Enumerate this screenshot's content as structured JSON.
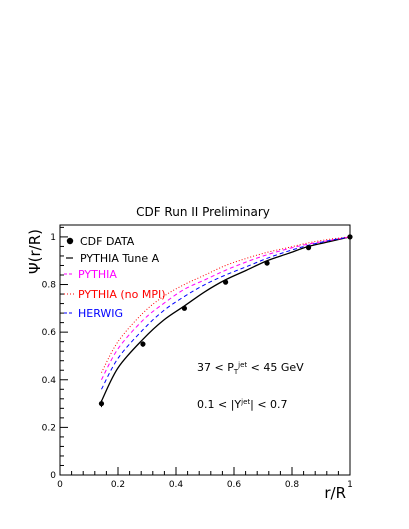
{
  "chart_data": {
    "type": "line",
    "title": "CDF Run II Preliminary",
    "xlabel": "r/R",
    "ylabel": "Ψ(r/R)",
    "xlim": [
      0,
      1
    ],
    "ylim": [
      0,
      1.05
    ],
    "xticks": [
      0,
      0.2,
      0.4,
      0.6,
      0.8,
      1
    ],
    "xtick_labels": [
      "0",
      "0.2",
      "0.4",
      "0.6",
      "0.8",
      "1"
    ],
    "yticks": [
      0,
      0.2,
      0.4,
      0.6,
      0.8,
      1
    ],
    "ytick_labels": [
      "0",
      "0.2",
      "0.4",
      "0.6",
      "0.8",
      "1"
    ],
    "grid": false,
    "legend_position": "top-left",
    "data_points": {
      "name": "CDF DATA",
      "x": [
        0.143,
        0.286,
        0.429,
        0.571,
        0.714,
        0.857,
        1.0
      ],
      "y": [
        0.3,
        0.55,
        0.7,
        0.81,
        0.89,
        0.955,
        1.0
      ],
      "yerr": [
        0.015,
        0.012,
        0.008,
        0.006,
        0.005,
        0.003,
        0.0
      ]
    },
    "series": [
      {
        "name": "PYTHIA Tune A",
        "style": "solid",
        "color": "#000000",
        "x": [
          0.143,
          0.2,
          0.286,
          0.357,
          0.429,
          0.5,
          0.571,
          0.643,
          0.714,
          0.786,
          0.857,
          0.929,
          1.0
        ],
        "y": [
          0.31,
          0.45,
          0.57,
          0.65,
          0.71,
          0.77,
          0.82,
          0.86,
          0.9,
          0.93,
          0.96,
          0.98,
          1.0
        ]
      },
      {
        "name": "PYTHIA",
        "style": "dashed",
        "color": "#ff00ff",
        "x": [
          0.143,
          0.2,
          0.286,
          0.357,
          0.429,
          0.5,
          0.571,
          0.643,
          0.714,
          0.786,
          0.857,
          0.929,
          1.0
        ],
        "y": [
          0.4,
          0.53,
          0.65,
          0.72,
          0.78,
          0.82,
          0.86,
          0.895,
          0.925,
          0.95,
          0.97,
          0.985,
          1.0
        ]
      },
      {
        "name": "PYTHIA (no MPI)",
        "style": "dotted",
        "color": "#ff0000",
        "x": [
          0.143,
          0.2,
          0.286,
          0.357,
          0.429,
          0.5,
          0.571,
          0.643,
          0.714,
          0.786,
          0.857,
          0.929,
          1.0
        ],
        "y": [
          0.43,
          0.56,
          0.68,
          0.75,
          0.8,
          0.84,
          0.88,
          0.91,
          0.935,
          0.955,
          0.975,
          0.99,
          1.0
        ]
      },
      {
        "name": "HERWIG",
        "style": "dashed",
        "color": "#0000ff",
        "x": [
          0.143,
          0.2,
          0.286,
          0.357,
          0.429,
          0.5,
          0.571,
          0.643,
          0.714,
          0.786,
          0.857,
          0.929,
          1.0
        ],
        "y": [
          0.36,
          0.49,
          0.61,
          0.69,
          0.75,
          0.8,
          0.84,
          0.875,
          0.91,
          0.94,
          0.965,
          0.985,
          1.0
        ]
      }
    ],
    "legend_labels": [
      "CDF DATA",
      "PYTHIA Tune A",
      "PYTHIA",
      "PYTHIA (no MPI)",
      "HERWIG"
    ],
    "annotations": [
      "37 < P_T^jet < 45 GeV",
      "0.1 < |Y^jet| < 0.7"
    ]
  }
}
